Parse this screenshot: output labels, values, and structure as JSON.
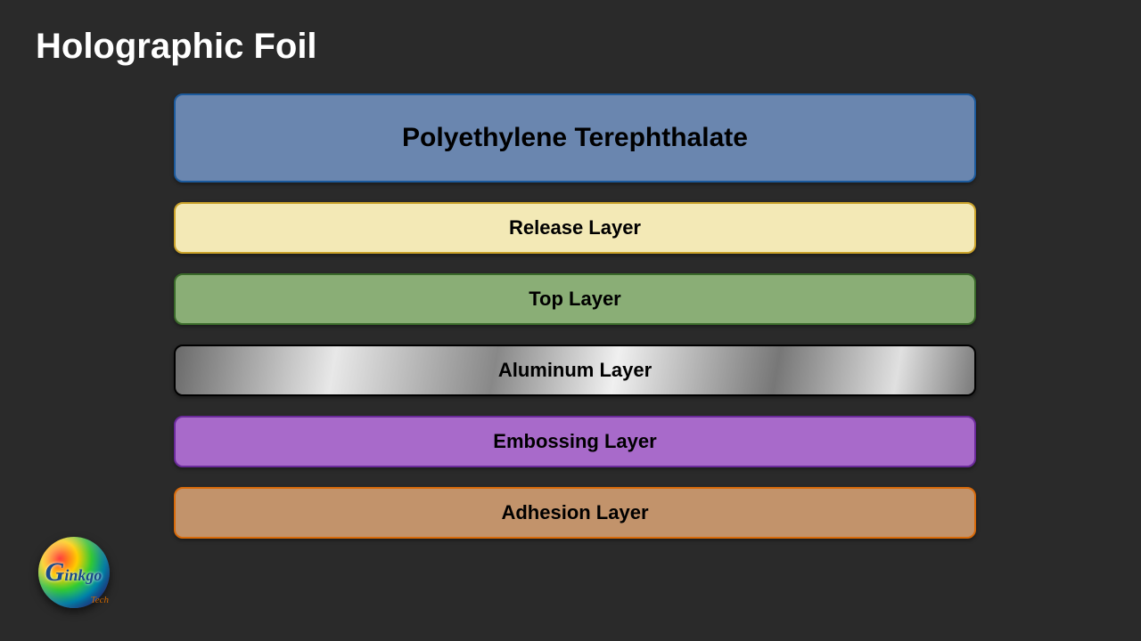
{
  "title": "Holographic Foil",
  "background_color": "#2a2a2a",
  "title_color": "#ffffff",
  "title_fontsize": 40,
  "stack_width": 900,
  "stack_gap": 22,
  "border_radius": 10,
  "layers": [
    {
      "label": "Polyethylene Terephthalate",
      "height": 100,
      "fontsize": 30,
      "fill": "#6a86af",
      "border_color": "#1c5a9c",
      "text_color": "#000000",
      "pattern": "solid"
    },
    {
      "label": "Release Layer",
      "height": 58,
      "fontsize": 22,
      "fill": "#f3e9b6",
      "border_color": "#caa22a",
      "text_color": "#000000",
      "pattern": "solid"
    },
    {
      "label": "Top Layer",
      "height": 58,
      "fontsize": 22,
      "fill": "#8aae76",
      "border_color": "#3a6a2a",
      "text_color": "#000000",
      "pattern": "solid"
    },
    {
      "label": "Aluminum Layer",
      "height": 58,
      "fontsize": 22,
      "fill": "#a0a0a0",
      "border_color": "#000000",
      "text_color": "#000000",
      "pattern": "metallic"
    },
    {
      "label": "Embossing Layer",
      "height": 58,
      "fontsize": 22,
      "fill": "#a86aca",
      "border_color": "#6a2a9a",
      "text_color": "#000000",
      "pattern": "solid"
    },
    {
      "label": "Adhesion Layer",
      "height": 58,
      "fontsize": 22,
      "fill": "#c2936b",
      "border_color": "#d86a0a",
      "text_color": "#000000",
      "pattern": "solid"
    }
  ],
  "logo": {
    "main_text": "inkgo",
    "big_letter": "G",
    "sub_text": "Tech",
    "sphere_gradient": [
      "#ff3333",
      "#ffcc00",
      "#33cc33",
      "#0099cc",
      "#3333aa",
      "#6600cc"
    ]
  }
}
